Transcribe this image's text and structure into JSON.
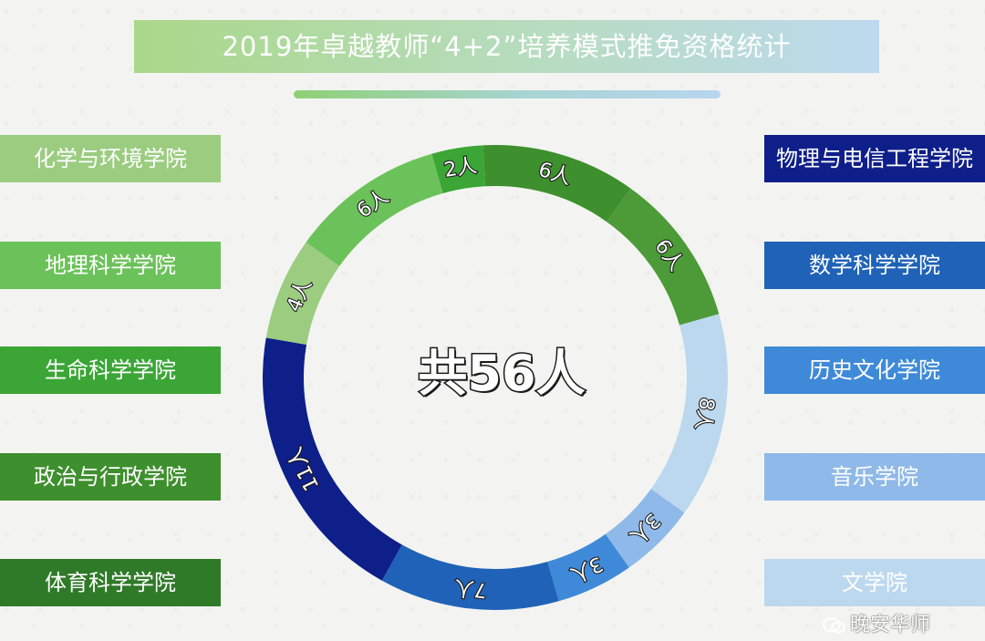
{
  "title": "2019年卓越教师“4+2”培养模式推免资格统计",
  "total_label": "共56人",
  "watermark": "晚安华师",
  "chart_data": {
    "type": "pie",
    "variant": "donut",
    "total": 56,
    "slices": [
      {
        "name": "物理与电信工程学院",
        "value": 6,
        "label": "6人",
        "color": "#3e8f2d",
        "side": "right"
      },
      {
        "name": "数学科学学院",
        "value": 6,
        "label": "6人",
        "color": "#4c9a38",
        "side": "right"
      },
      {
        "name": "历史文化学院",
        "value": 8,
        "label": "8人",
        "color": "#bcd8ef",
        "side": "right"
      },
      {
        "name": "音乐学院",
        "value": 3,
        "label": "3人",
        "color": "#8fb9e8",
        "side": "right"
      },
      {
        "name": "文学院",
        "value": 3,
        "label": "3人",
        "color": "#3f8ad8",
        "side": "right"
      },
      {
        "name": "体育科学学院",
        "value": 7,
        "label": "7人",
        "color": "#1f62b8",
        "side": "left"
      },
      {
        "name": "政治与行政学院",
        "value": 11,
        "label": "11人",
        "color": "#0e1f8a",
        "side": "left"
      },
      {
        "name": "生命科学学院",
        "value": 4,
        "label": "4人",
        "color": "#9bcc80",
        "side": "left"
      },
      {
        "name": "地理科学学院",
        "value": 6,
        "label": "6人",
        "color": "#6cc25a",
        "side": "left"
      },
      {
        "name": "化学与环境学院",
        "value": 2,
        "label": "2人",
        "color": "#3ba636",
        "side": "left"
      }
    ]
  },
  "legend": {
    "left": [
      {
        "label": "化学与环境学院",
        "color": "#9bcc80"
      },
      {
        "label": "地理科学学院",
        "color": "#6cc25a"
      },
      {
        "label": "生命科学学院",
        "color": "#3ba636"
      },
      {
        "label": "政治与行政学院",
        "color": "#3e8f2d"
      },
      {
        "label": "体育科学学院",
        "color": "#2f7a28"
      }
    ],
    "right": [
      {
        "label": "物理与电信工程学院",
        "color": "#0e1f8a"
      },
      {
        "label": "数学科学学院",
        "color": "#1f62b8"
      },
      {
        "label": "历史文化学院",
        "color": "#3f8ad8"
      },
      {
        "label": "音乐学院",
        "color": "#8fb9e8"
      },
      {
        "label": "文学院",
        "color": "#bcd8ef"
      }
    ]
  }
}
